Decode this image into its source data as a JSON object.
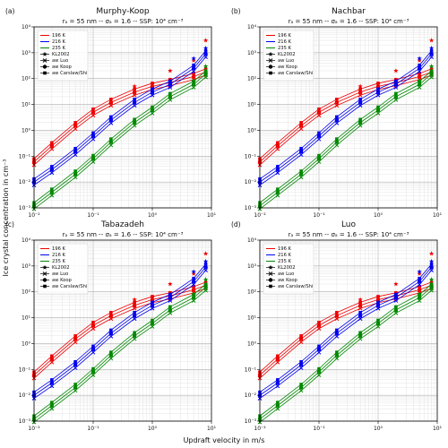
{
  "figure": {
    "ylabel": "Ice crystal concentration in cm$^{-3}$",
    "ylabel_text": "Ice crystal concentration in cm⁻³",
    "xlabel": "Updraft velocity in m/s"
  },
  "legend": {
    "temperatures": [
      {
        "label": "196 K",
        "color": "#ee0000"
      },
      {
        "label": "216 K",
        "color": "#0000ee"
      },
      {
        "label": "235 K",
        "color": "#008800"
      }
    ],
    "methods": [
      {
        "label": "KL2002",
        "marker": "star"
      },
      {
        "label": "aw Luo",
        "marker": "x"
      },
      {
        "label": "aw Koop",
        "marker": "circle"
      },
      {
        "label": "aw Carslaw/Shi",
        "marker": "square"
      }
    ]
  },
  "chart_data": [
    {
      "type": "scatter",
      "panel_label": "(a)",
      "title": "Murphy-Koop",
      "subtitle": "rₐ = 55 nm -- σₐ = 1.6 -- SSP: 10⁴ cm⁻³",
      "xscale": "log",
      "yscale": "log",
      "xlim": [
        0.01,
        10
      ],
      "ylim": [
        0.001,
        10000
      ],
      "grid": true,
      "legend_position": "top-left",
      "xticks": [
        "10⁻²",
        "10⁻¹",
        "10⁰",
        "10¹"
      ],
      "yticks": [
        "10⁻³",
        "10⁻²",
        "10⁻¹",
        "10⁰",
        "10¹",
        "10²",
        "10³",
        "10⁴"
      ],
      "x": [
        0.01,
        0.02,
        0.05,
        0.1,
        0.2,
        0.5,
        1,
        2,
        5,
        8
      ],
      "series": [
        {
          "name": "196 K",
          "color": "#ee0000",
          "values": [
            0.06,
            0.25,
            1.5,
            5,
            12,
            30,
            50,
            70,
            120,
            180
          ],
          "kl2002": [
            null,
            null,
            null,
            null,
            null,
            50,
            60,
            200,
            500,
            3000
          ]
        },
        {
          "name": "216 K",
          "color": "#0000ee",
          "values": [
            0.01,
            0.03,
            0.15,
            0.6,
            2.5,
            12,
            30,
            60,
            250,
            900
          ],
          "kl2002": [
            null,
            null,
            null,
            null,
            null,
            null,
            null,
            80,
            600,
            1500
          ]
        },
        {
          "name": "235 K",
          "color": "#008800",
          "values": [
            0.0012,
            0.004,
            0.02,
            0.08,
            0.35,
            2,
            6,
            20,
            60,
            150
          ],
          "kl2002": [
            null,
            null,
            null,
            null,
            null,
            null,
            null,
            null,
            80,
            300
          ]
        }
      ]
    },
    {
      "type": "scatter",
      "panel_label": "(b)",
      "title": "Nachbar",
      "subtitle": "rₐ = 55 nm -- σₐ = 1.6 -- SSP: 10⁴ cm⁻³",
      "xscale": "log",
      "yscale": "log",
      "xlim": [
        0.01,
        10
      ],
      "ylim": [
        0.001,
        10000
      ],
      "grid": true,
      "legend_position": "top-left",
      "xticks": [
        "10⁻²",
        "10⁻¹",
        "10⁰",
        "10¹"
      ],
      "yticks": [
        "10⁻³",
        "10⁻²",
        "10⁻¹",
        "10⁰",
        "10¹",
        "10²",
        "10³",
        "10⁴"
      ],
      "x": [
        0.01,
        0.02,
        0.05,
        0.1,
        0.2,
        0.5,
        1,
        2,
        5,
        8
      ],
      "series": [
        {
          "name": "196 K",
          "color": "#ee0000",
          "values": [
            0.06,
            0.25,
            1.5,
            5,
            12,
            30,
            50,
            70,
            120,
            180
          ],
          "kl2002": [
            null,
            null,
            null,
            null,
            null,
            50,
            60,
            200,
            500,
            3000
          ]
        },
        {
          "name": "216 K",
          "color": "#0000ee",
          "values": [
            0.01,
            0.03,
            0.15,
            0.6,
            2.5,
            12,
            30,
            60,
            250,
            900
          ],
          "kl2002": [
            null,
            null,
            null,
            null,
            null,
            null,
            null,
            80,
            600,
            1500
          ]
        },
        {
          "name": "235 K",
          "color": "#008800",
          "values": [
            0.0012,
            0.004,
            0.02,
            0.08,
            0.35,
            2,
            6,
            20,
            60,
            150
          ],
          "kl2002": [
            null,
            null,
            null,
            null,
            null,
            null,
            null,
            null,
            80,
            300
          ]
        }
      ]
    },
    {
      "type": "scatter",
      "panel_label": "(c)",
      "title": "Tabazadeh",
      "subtitle": "rₐ = 55 nm -- σₐ = 1.6 -- SSP: 10⁴ cm⁻³",
      "xscale": "log",
      "yscale": "log",
      "xlim": [
        0.01,
        10
      ],
      "ylim": [
        0.001,
        10000
      ],
      "grid": true,
      "legend_position": "top-left",
      "xticks": [
        "10⁻²",
        "10⁻¹",
        "10⁰",
        "10¹"
      ],
      "yticks": [
        "10⁻³",
        "10⁻²",
        "10⁻¹",
        "10⁰",
        "10¹",
        "10²",
        "10³",
        "10⁴"
      ],
      "x": [
        0.01,
        0.02,
        0.05,
        0.1,
        0.2,
        0.5,
        1,
        2,
        5,
        8
      ],
      "series": [
        {
          "name": "196 K",
          "color": "#ee0000",
          "values": [
            0.06,
            0.25,
            1.5,
            5,
            12,
            30,
            50,
            70,
            120,
            180
          ],
          "kl2002": [
            null,
            null,
            null,
            null,
            null,
            50,
            60,
            200,
            500,
            3000
          ]
        },
        {
          "name": "216 K",
          "color": "#0000ee",
          "values": [
            0.01,
            0.03,
            0.15,
            0.6,
            2.5,
            12,
            30,
            60,
            250,
            900
          ],
          "kl2002": [
            null,
            null,
            null,
            null,
            null,
            null,
            null,
            80,
            600,
            1500
          ]
        },
        {
          "name": "235 K",
          "color": "#008800",
          "values": [
            0.0012,
            0.004,
            0.02,
            0.08,
            0.35,
            2,
            6,
            20,
            60,
            150
          ],
          "kl2002": [
            null,
            null,
            null,
            null,
            null,
            null,
            null,
            null,
            80,
            300
          ]
        }
      ]
    },
    {
      "type": "scatter",
      "panel_label": "(d)",
      "title": "Luo",
      "subtitle": "rₐ = 55 nm -- σₐ = 1.6 -- SSP: 10⁴ cm⁻³",
      "xscale": "log",
      "yscale": "log",
      "xlim": [
        0.01,
        10
      ],
      "ylim": [
        0.001,
        10000
      ],
      "grid": true,
      "legend_position": "top-left",
      "xticks": [
        "10⁻²",
        "10⁻¹",
        "10⁰",
        "10¹"
      ],
      "yticks": [
        "10⁻³",
        "10⁻²",
        "10⁻¹",
        "10⁰",
        "10¹",
        "10²",
        "10³",
        "10⁴"
      ],
      "x": [
        0.01,
        0.02,
        0.05,
        0.1,
        0.2,
        0.5,
        1,
        2,
        5,
        8
      ],
      "series": [
        {
          "name": "196 K",
          "color": "#ee0000",
          "values": [
            0.06,
            0.25,
            1.5,
            5,
            12,
            30,
            50,
            70,
            120,
            180
          ],
          "kl2002": [
            null,
            null,
            null,
            null,
            null,
            50,
            60,
            200,
            500,
            3000
          ]
        },
        {
          "name": "216 K",
          "color": "#0000ee",
          "values": [
            0.01,
            0.03,
            0.15,
            0.6,
            2.5,
            12,
            30,
            60,
            250,
            900
          ],
          "kl2002": [
            null,
            null,
            null,
            null,
            null,
            null,
            null,
            80,
            600,
            1500
          ]
        },
        {
          "name": "235 K",
          "color": "#008800",
          "values": [
            0.0012,
            0.004,
            0.02,
            0.08,
            0.35,
            2,
            6,
            20,
            60,
            150
          ],
          "kl2002": [
            null,
            null,
            null,
            null,
            null,
            null,
            null,
            null,
            80,
            300
          ]
        }
      ]
    }
  ]
}
